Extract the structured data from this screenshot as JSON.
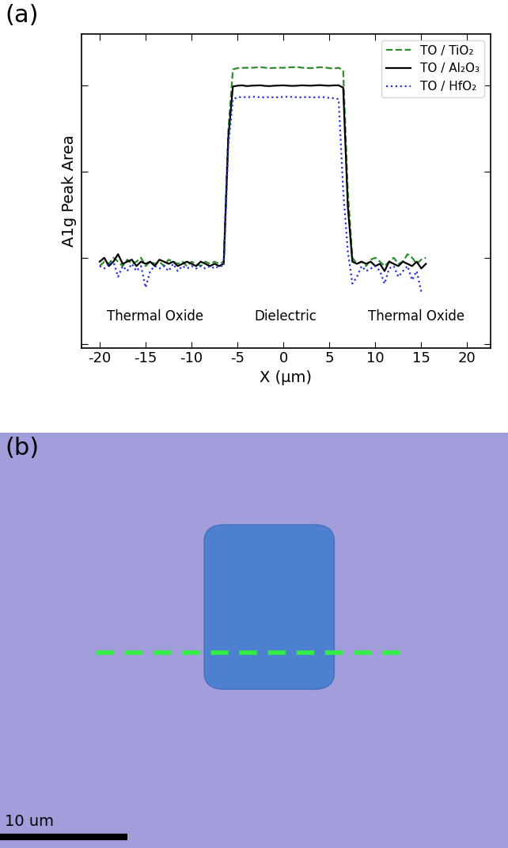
{
  "chart_data": {
    "type": "line",
    "panel_label": "(a)",
    "x_label": "X (μm)",
    "y_label": "A1g Peak Area",
    "annotations": [
      "Thermal Oxide",
      "Dielectric",
      "Thermal Oxide"
    ],
    "x": [
      -20,
      -19.5,
      -19,
      -18.5,
      -18,
      -17.5,
      -17,
      -16.5,
      -16,
      -15.5,
      -15,
      -14.5,
      -14,
      -13.5,
      -13,
      -12.5,
      -12,
      -11.5,
      -11,
      -10.5,
      -10,
      -9.5,
      -9,
      -8.5,
      -8,
      -7.5,
      -7,
      -6.5,
      -6,
      -5.5,
      -5,
      -4.5,
      -4,
      -3.5,
      -3,
      -2.5,
      -2,
      -1.5,
      -1,
      -0.5,
      0,
      0.5,
      1,
      1.5,
      2,
      2.5,
      3,
      3.5,
      4,
      4.5,
      5,
      5.5,
      6,
      6.5,
      7,
      7.5,
      8,
      8.5,
      9,
      9.5,
      10,
      10.5,
      11,
      11.5,
      12,
      12.5,
      13,
      13.5,
      14,
      14.5,
      15,
      15.5
    ],
    "series": [
      {
        "name": "TO / TiO₂",
        "color": "#2e8b2e",
        "line_style": "dashed",
        "values": [
          8,
          9,
          8.5,
          10,
          9,
          8,
          9.5,
          8.5,
          9,
          10,
          8,
          9,
          8.5,
          9,
          8,
          9.5,
          9,
          8.5,
          9,
          8,
          9,
          8.5,
          8,
          9,
          8.5,
          9,
          8.5,
          9,
          300,
          1550,
          1600,
          1610,
          1620,
          1615,
          1630,
          1640,
          1620,
          1600,
          1610,
          1620,
          1615,
          1630,
          1640,
          1650,
          1620,
          1610,
          1600,
          1620,
          1640,
          1630,
          1600,
          1580,
          1620,
          1500,
          60,
          10,
          8.5,
          9,
          8,
          9.5,
          10,
          9,
          8,
          9,
          10,
          8.5,
          9,
          11,
          10,
          8.5,
          9.5,
          10
        ]
      },
      {
        "name": "TO / Al₂O₃",
        "color": "#000000",
        "line_style": "solid",
        "values": [
          9,
          10,
          8,
          9,
          11,
          8.5,
          9,
          9.5,
          8,
          9,
          8.5,
          9,
          8,
          9.5,
          9,
          8.5,
          9,
          8,
          8.5,
          9,
          8.5,
          8,
          9,
          8.5,
          8,
          8.5,
          8,
          8.5,
          250,
          980,
          1000,
          1010,
          990,
          1000,
          1005,
          1010,
          995,
          990,
          1000,
          1005,
          1010,
          1000,
          995,
          1000,
          1010,
          1005,
          1000,
          1010,
          1015,
          1005,
          1000,
          1010,
          1010,
          950,
          40,
          9,
          8.5,
          9,
          8.5,
          9,
          8,
          8.5,
          7,
          9,
          8.5,
          8,
          9,
          8.5,
          8,
          9,
          7.5,
          8.5
        ]
      },
      {
        "name": "TO / HfO₂",
        "color": "#2233dd",
        "line_style": "dotted",
        "values": [
          8,
          7.5,
          8.5,
          9,
          6,
          8,
          7,
          8.5,
          7,
          8,
          4.5,
          7,
          8,
          7.5,
          8,
          7,
          8.5,
          7,
          8,
          7.5,
          8,
          7.5,
          8,
          7.5,
          8,
          7.5,
          8,
          8,
          200,
          700,
          730,
          740,
          735,
          740,
          745,
          730,
          735,
          740,
          730,
          735,
          740,
          745,
          740,
          735,
          730,
          740,
          735,
          730,
          740,
          735,
          720,
          715,
          700,
          60,
          12,
          5,
          6,
          8,
          7,
          7.5,
          8,
          7,
          5,
          7.5,
          8,
          6,
          7,
          8,
          5.5,
          7,
          4,
          null
        ]
      }
    ],
    "xlim": [
      -22,
      22.5
    ],
    "xticks": [
      -20,
      -15,
      -10,
      -5,
      0,
      5,
      10,
      15,
      20
    ],
    "ylim": [
      0.9,
      4000
    ],
    "yticks": [
      1,
      10,
      100,
      1000
    ],
    "log": "y",
    "tick_labels": "x",
    "legend": "upper right",
    "grid": false
  },
  "image": {
    "panel_label": "(b)",
    "scale_bar_label": "10 um"
  }
}
